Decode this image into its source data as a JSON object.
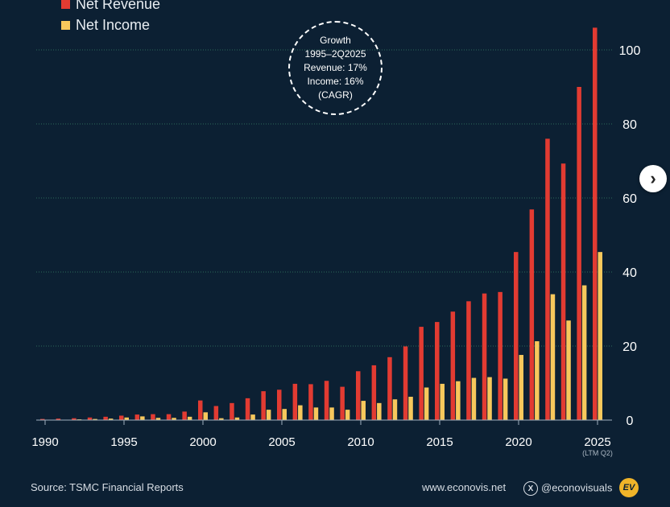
{
  "legend": {
    "items": [
      {
        "label": "Net Revenue",
        "color": "#e23b32"
      },
      {
        "label": "Net Income",
        "color": "#f7c85c"
      }
    ]
  },
  "callout": {
    "lines": [
      "Growth",
      "1995–2Q2025",
      "Revenue: 17%",
      "Income: 16%",
      "(CAGR)"
    ]
  },
  "footer": {
    "source": "Source: TSMC Financial Reports",
    "website": "www.econovis.net",
    "handle": "@econovisuals",
    "logo_text": "EV"
  },
  "chart_data": {
    "type": "bar",
    "x": [
      1990,
      1991,
      1992,
      1993,
      1994,
      1995,
      1996,
      1997,
      1998,
      1999,
      2000,
      2001,
      2002,
      2003,
      2004,
      2005,
      2006,
      2007,
      2008,
      2009,
      2010,
      2011,
      2012,
      2013,
      2014,
      2015,
      2016,
      2017,
      2018,
      2019,
      2020,
      2021,
      2022,
      2023,
      2024,
      2025
    ],
    "series": [
      {
        "name": "Net Revenue",
        "color": "#e23b32",
        "values": [
          0.3,
          0.4,
          0.5,
          0.7,
          0.9,
          1.2,
          1.5,
          1.6,
          1.6,
          2.3,
          5.3,
          3.8,
          4.6,
          5.9,
          7.8,
          8.2,
          9.8,
          9.7,
          10.6,
          9.0,
          13.2,
          14.8,
          17.0,
          19.9,
          25.2,
          26.5,
          29.3,
          32.1,
          34.2,
          34.6,
          45.4,
          56.9,
          76.0,
          69.3,
          90.0,
          106.0
        ]
      },
      {
        "name": "Net Income",
        "color": "#f7c85c",
        "values": [
          0.1,
          0.1,
          0.2,
          0.3,
          0.4,
          0.7,
          1.0,
          0.6,
          0.6,
          0.9,
          2.1,
          0.5,
          0.7,
          1.5,
          2.8,
          3.0,
          4.0,
          3.4,
          3.4,
          2.8,
          5.2,
          4.6,
          5.6,
          6.3,
          8.8,
          9.8,
          10.5,
          11.4,
          11.6,
          11.2,
          17.6,
          21.3,
          34.0,
          26.9,
          36.4,
          45.4
        ]
      }
    ],
    "xticks": [
      1990,
      1995,
      2000,
      2005,
      2010,
      2015,
      2020,
      2025
    ],
    "xtick_labels": [
      "1990",
      "1995",
      "2000",
      "2005",
      "2010",
      "2015",
      "2020",
      "2025"
    ],
    "xtick_sublabel": "(LTM Q2)",
    "yticks": [
      0,
      20,
      40,
      60,
      80,
      100
    ],
    "ylim": [
      0,
      108
    ],
    "grid": true,
    "yaxis_side": "right",
    "legend_position": "top-left"
  },
  "colors": {
    "background": "#0c2033",
    "grid": "#2d6a5a",
    "axis_text": "#ffffff"
  },
  "next_button": {
    "icon": "chevron-right-icon",
    "glyph": "›"
  }
}
